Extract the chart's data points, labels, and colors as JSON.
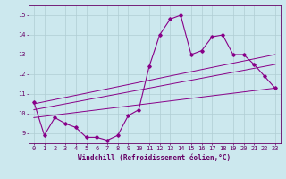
{
  "x_vals": [
    0,
    1,
    2,
    3,
    4,
    5,
    6,
    7,
    8,
    9,
    10,
    11,
    12,
    13,
    14,
    15,
    16,
    17,
    18,
    19,
    20,
    21,
    22,
    23
  ],
  "line1_y": [
    10.6,
    8.9,
    9.8,
    9.5,
    9.3,
    8.8,
    8.8,
    8.65,
    8.9,
    9.9,
    10.2,
    12.4,
    14.0,
    14.8,
    15.0,
    13.0,
    13.2,
    13.9,
    14.0,
    13.0,
    13.0,
    12.5,
    11.9,
    11.3
  ],
  "trend1_x": [
    0,
    23
  ],
  "trend1_y": [
    10.5,
    13.0
  ],
  "trend2_x": [
    0,
    23
  ],
  "trend2_y": [
    10.2,
    12.5
  ],
  "trend3_x": [
    0,
    23
  ],
  "trend3_y": [
    9.8,
    11.3
  ],
  "line_color": "#880088",
  "bg_color": "#cce8ee",
  "grid_color": "#b0cdd4",
  "axis_color": "#660066",
  "xlim": [
    -0.5,
    23.5
  ],
  "ylim": [
    8.5,
    15.5
  ],
  "yticks": [
    9,
    10,
    11,
    12,
    13,
    14,
    15
  ],
  "xticks": [
    0,
    1,
    2,
    3,
    4,
    5,
    6,
    7,
    8,
    9,
    10,
    11,
    12,
    13,
    14,
    15,
    16,
    17,
    18,
    19,
    20,
    21,
    22,
    23
  ],
  "xlabel": "Windchill (Refroidissement éolien,°C)",
  "label_fontsize": 5.5,
  "tick_fontsize": 5.0
}
